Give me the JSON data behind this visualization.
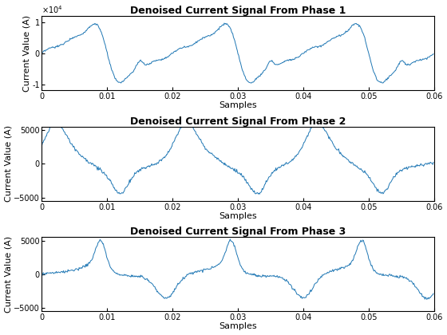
{
  "title1": "Denoised Current Signal From Phase 1",
  "title2": "Denoised Current Signal From Phase 2",
  "title3": "Denoised Current Signal From Phase 3",
  "xlabel": "Samples",
  "ylabel": "Current Value (A)",
  "xlim": [
    0,
    0.06
  ],
  "ylim1": [
    -12000,
    12000
  ],
  "ylim2": [
    -5500,
    5500
  ],
  "ylim3": [
    -5500,
    5500
  ],
  "yticks1": [
    -10000,
    0,
    10000
  ],
  "yticks2": [
    -5000,
    0,
    5000
  ],
  "yticks3": [
    -5000,
    0,
    5000
  ],
  "line_color": "#1f77b4",
  "line_width": 0.7,
  "bg_color": "#ffffff",
  "freq": 50,
  "sample_rate": 10000,
  "title_fontsize": 9,
  "label_fontsize": 8,
  "tick_fontsize": 7
}
